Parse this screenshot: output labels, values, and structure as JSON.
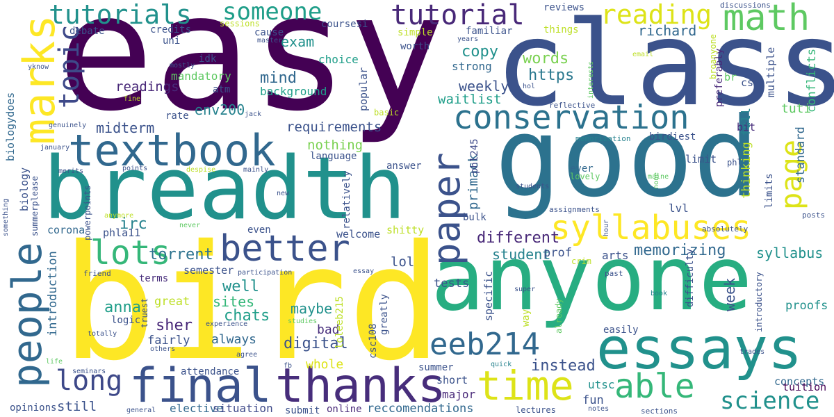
{
  "words": [
    {
      "t": "easy",
      "c": "#440154"
    },
    {
      "t": "class",
      "c": "#3b528b"
    },
    {
      "t": "good",
      "c": "#2c728e"
    },
    {
      "t": "breadth",
      "c": "#21918c"
    },
    {
      "t": "bird",
      "c": "#fde725"
    },
    {
      "t": "anyone",
      "c": "#27ad81"
    },
    {
      "t": "essays",
      "c": "#21918c"
    },
    {
      "t": "thanks",
      "c": "#472d7b"
    },
    {
      "t": "final",
      "c": "#3b528b"
    },
    {
      "t": "textbook",
      "c": "#31688e"
    },
    {
      "t": "people",
      "c": "#31688e"
    },
    {
      "t": "marks",
      "c": "#fde725"
    },
    {
      "t": "conservation",
      "c": "#2c728e"
    },
    {
      "t": "syllabuses",
      "c": "#fde725"
    },
    {
      "t": "better",
      "c": "#3b528b"
    },
    {
      "t": "lots",
      "c": "#35b779"
    },
    {
      "t": "paper",
      "c": "#3b528b"
    },
    {
      "t": "tutorial",
      "c": "#482878"
    },
    {
      "t": "tutorials",
      "c": "#21918c"
    },
    {
      "t": "someone",
      "c": "#1f9e89"
    },
    {
      "t": "math",
      "c": "#5ec962"
    },
    {
      "t": "reading",
      "c": "#dde318"
    },
    {
      "t": "page",
      "c": "#dde318"
    },
    {
      "t": "time",
      "c": "#dde318"
    },
    {
      "t": "able",
      "c": "#35b779"
    },
    {
      "t": "long",
      "c": "#3e4989"
    },
    {
      "t": "eeb214",
      "c": "#31688e"
    },
    {
      "t": "science",
      "c": "#21918c"
    },
    {
      "t": "topic",
      "c": "#3e4989"
    },
    {
      "t": "memorizing",
      "c": "#31688e"
    },
    {
      "t": "requirements",
      "c": "#3b528b"
    },
    {
      "t": "env200",
      "c": "#26828e"
    },
    {
      "t": "midterm",
      "c": "#3b528b"
    },
    {
      "t": "different",
      "c": "#482878"
    },
    {
      "t": "student",
      "c": "#26828e"
    },
    {
      "t": "instead",
      "c": "#3b528b"
    },
    {
      "t": "words",
      "c": "#7ad151"
    },
    {
      "t": "https",
      "c": "#2a788e"
    },
    {
      "t": "weekly",
      "c": "#3b528b"
    },
    {
      "t": "waitlist",
      "c": "#1f9e89"
    },
    {
      "t": "copy",
      "c": "#21918c"
    },
    {
      "t": "richard",
      "c": "#31688e"
    },
    {
      "t": "strong",
      "c": "#31688e"
    },
    {
      "t": "choice",
      "c": "#1f9e89"
    },
    {
      "t": "readings",
      "c": "#482878"
    },
    {
      "t": "background",
      "c": "#1f9e89"
    },
    {
      "t": "mind",
      "c": "#31688e"
    },
    {
      "t": "mandatory",
      "c": "#5ec962"
    },
    {
      "t": "exam",
      "c": "#21918c"
    },
    {
      "t": "nothing",
      "c": "#7ad151"
    },
    {
      "t": "irc",
      "c": "#26828e"
    },
    {
      "t": "torrent",
      "c": "#2c728e"
    },
    {
      "t": "sites",
      "c": "#35b779"
    },
    {
      "t": "chats",
      "c": "#1f9e89"
    },
    {
      "t": "anna",
      "c": "#1f9e89"
    },
    {
      "t": "sher",
      "c": "#482878"
    },
    {
      "t": "always",
      "c": "#31688e"
    },
    {
      "t": "digital",
      "c": "#3b528b"
    },
    {
      "t": "maybe",
      "c": "#21918c"
    },
    {
      "t": "bad",
      "c": "#472d7b"
    },
    {
      "t": "whole",
      "c": "#dde318"
    },
    {
      "t": "lol",
      "c": "#3b528b"
    },
    {
      "t": "well",
      "c": "#21918c"
    },
    {
      "t": "great",
      "c": "#bddf26"
    },
    {
      "t": "week",
      "c": "#3b528b"
    },
    {
      "t": "tests",
      "c": "#3b528b"
    },
    {
      "t": "syllabus",
      "c": "#21918c"
    },
    {
      "t": "concepts",
      "c": "#31688e"
    },
    {
      "t": "proofs",
      "c": "#21918c"
    },
    {
      "t": "tuition",
      "c": "#440154"
    },
    {
      "t": "still",
      "c": "#3b528b"
    },
    {
      "t": "elective",
      "c": "#31688e"
    },
    {
      "t": "situation",
      "c": "#3e4989"
    },
    {
      "t": "online",
      "c": "#482878"
    },
    {
      "t": "reccomendations",
      "c": "#31688e"
    },
    {
      "t": "fun",
      "c": "#3b528b"
    },
    {
      "t": "utsc",
      "c": "#21918c"
    },
    {
      "t": "major",
      "c": "#482878"
    },
    {
      "t": "summer",
      "c": "#3b528b"
    },
    {
      "t": "short",
      "c": "#3b528b"
    },
    {
      "t": "semester",
      "c": "#3b528b"
    },
    {
      "t": "terms",
      "c": "#472d7b"
    },
    {
      "t": "fairly",
      "c": "#3b528b"
    },
    {
      "t": "logic",
      "c": "#3b528b"
    },
    {
      "t": "prof",
      "c": "#3b528b"
    },
    {
      "t": "arts",
      "c": "#3b528b"
    },
    {
      "t": "lvl",
      "c": "#3b528b"
    },
    {
      "t": "primack",
      "c": "#31688e"
    },
    {
      "t": "phl245",
      "c": "#3e4989"
    },
    {
      "t": "thinking",
      "c": "#bddf26"
    },
    {
      "t": "full",
      "c": "#26828e"
    },
    {
      "t": "tuti",
      "c": "#5ec962"
    },
    {
      "t": "standard",
      "c": "#31688e"
    },
    {
      "t": "limits",
      "c": "#3b528b"
    },
    {
      "t": "limit",
      "c": "#3b528b"
    },
    {
      "t": "birdiest",
      "c": "#3b528b"
    },
    {
      "t": "multiple",
      "c": "#3b528b"
    },
    {
      "t": "conflicts",
      "c": "#35b779"
    },
    {
      "t": "preferably",
      "c": "#482878"
    },
    {
      "t": "bit",
      "c": "#472d7b"
    },
    {
      "t": "cs",
      "c": "#3b528b"
    },
    {
      "t": "br",
      "c": "#5ec962"
    },
    {
      "t": "broanyone",
      "c": "#bddf26"
    },
    {
      "t": "reflective",
      "c": "#3b528b"
    },
    {
      "t": "memorization",
      "c": "#26828e"
    },
    {
      "t": "ever",
      "c": "#31688e"
    },
    {
      "t": "lovely",
      "c": "#5ec962"
    },
    {
      "t": "students",
      "c": "#3b528b"
    },
    {
      "t": "assignments",
      "c": "#3b528b"
    },
    {
      "t": "absolutely",
      "c": "#3b528b"
    },
    {
      "t": "hour",
      "c": "#3b528b"
    },
    {
      "t": "posts",
      "c": "#3b528b"
    },
    {
      "t": "phl",
      "c": "#3b528b"
    },
    {
      "t": "none",
      "c": "#5ec962"
    },
    {
      "t": "maine",
      "c": "#5ec962"
    },
    {
      "t": "bulk",
      "c": "#3b528b"
    },
    {
      "t": "specific",
      "c": "#3b528b"
    },
    {
      "t": "crim",
      "c": "#bddf26"
    },
    {
      "t": "way",
      "c": "#bddf26"
    },
    {
      "t": "super",
      "c": "#3b528b"
    },
    {
      "t": "already",
      "c": "#5ec962"
    },
    {
      "t": "easily",
      "c": "#3b528b"
    },
    {
      "t": "difficulty",
      "c": "#3b528b"
    },
    {
      "t": "introductory",
      "c": "#3b528b"
    },
    {
      "t": "past",
      "c": "#3b528b"
    },
    {
      "t": "book",
      "c": "#26828e"
    },
    {
      "t": "trades",
      "c": "#3b528b"
    },
    {
      "t": "lectures",
      "c": "#3b528b"
    },
    {
      "t": "notes",
      "c": "#3b528b"
    },
    {
      "t": "sections",
      "c": "#3b528b"
    },
    {
      "t": "quick",
      "c": "#26828e"
    },
    {
      "t": "submit",
      "c": "#3b528b"
    },
    {
      "t": "attendance",
      "c": "#3b528b"
    },
    {
      "t": "general",
      "c": "#3b528b"
    },
    {
      "t": "opinions",
      "c": "#3b528b"
    },
    {
      "t": "seminars",
      "c": "#3b528b"
    },
    {
      "t": "life",
      "c": "#5ec962"
    },
    {
      "t": "others",
      "c": "#3b528b"
    },
    {
      "t": "agree",
      "c": "#3b528b"
    },
    {
      "t": "totally",
      "c": "#3b528b"
    },
    {
      "t": "experience",
      "c": "#3b528b"
    },
    {
      "t": "studies",
      "c": "#5ec962"
    },
    {
      "t": "truest",
      "c": "#3b528b"
    },
    {
      "t": "loleeb215",
      "c": "#bddf26"
    },
    {
      "t": "csc108",
      "c": "#3b528b"
    },
    {
      "t": "greatly",
      "c": "#3b528b"
    },
    {
      "t": "fb",
      "c": "#3b528b"
    },
    {
      "t": "friend",
      "c": "#3b528b"
    },
    {
      "t": "participation",
      "c": "#3b528b"
    },
    {
      "t": "essay",
      "c": "#3b528b"
    },
    {
      "t": "introduction",
      "c": "#31688e"
    },
    {
      "t": "corona",
      "c": "#31688e"
    },
    {
      "t": "phla11",
      "c": "#3b528b"
    },
    {
      "t": "even",
      "c": "#3b528b"
    },
    {
      "t": "welcome",
      "c": "#3b528b"
    },
    {
      "t": "shitty",
      "c": "#bddf26"
    },
    {
      "t": "relatively",
      "c": "#3b528b"
    },
    {
      "t": "answer",
      "c": "#3b528b"
    },
    {
      "t": "language",
      "c": "#3b528b"
    },
    {
      "t": "popular",
      "c": "#3b528b"
    },
    {
      "t": "basic",
      "c": "#bddf26"
    },
    {
      "t": "atm",
      "c": "#3b528b"
    },
    {
      "t": "rate",
      "c": "#3b528b"
    },
    {
      "t": "jack",
      "c": "#3b528b"
    },
    {
      "t": "fine",
      "c": "#bddf26"
    },
    {
      "t": "genuinely",
      "c": "#3b528b"
    },
    {
      "t": "january",
      "c": "#3b528b"
    },
    {
      "t": "merits",
      "c": "#3b528b"
    },
    {
      "t": "points",
      "c": "#3b528b"
    },
    {
      "t": "despise",
      "c": "#bddf26"
    },
    {
      "t": "mainly",
      "c": "#3b528b"
    },
    {
      "t": "never",
      "c": "#5ec962"
    },
    {
      "t": "new",
      "c": "#3b528b"
    },
    {
      "t": "anymore",
      "c": "#bddf26"
    },
    {
      "t": "powerpoints",
      "c": "#3b528b"
    },
    {
      "t": "summerplease",
      "c": "#3b528b"
    },
    {
      "t": "biology",
      "c": "#3b528b"
    },
    {
      "t": "biologydoes",
      "c": "#31688e"
    },
    {
      "t": "something",
      "c": "#3b528b"
    },
    {
      "t": "yknow",
      "c": "#3b528b"
    },
    {
      "t": "mostly",
      "c": "#3b528b"
    },
    {
      "t": "master",
      "c": "#3b528b"
    },
    {
      "t": "idk",
      "c": "#3b528b"
    },
    {
      "t": "uni",
      "c": "#3b528b"
    },
    {
      "t": "credits",
      "c": "#3b528b"
    },
    {
      "t": "debate",
      "c": "#3b528b"
    },
    {
      "t": "sessions",
      "c": "#bddf26"
    },
    {
      "t": "cause",
      "c": "#3b528b"
    },
    {
      "t": "coursesi",
      "c": "#3b528b"
    },
    {
      "t": "simple",
      "c": "#bddf26"
    },
    {
      "t": "familiar",
      "c": "#3b528b"
    },
    {
      "t": "years",
      "c": "#3b528b"
    },
    {
      "t": "worth",
      "c": "#3b528b"
    },
    {
      "t": "reviews",
      "c": "#3b528b"
    },
    {
      "t": "things",
      "c": "#bddf26"
    },
    {
      "t": "discussions",
      "c": "#3b528b"
    },
    {
      "t": "email",
      "c": "#bddf26"
    },
    {
      "t": "interests",
      "c": "#5ec962"
    },
    {
      "t": "hol",
      "c": "#3b528b"
    }
  ]
}
